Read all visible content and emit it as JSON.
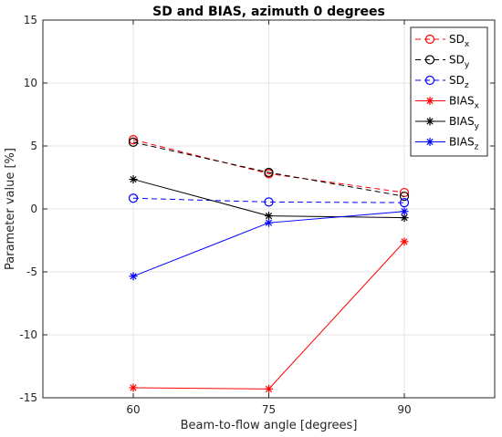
{
  "chart_data": {
    "type": "line",
    "title": "SD and BIAS, azimuth 0 degrees",
    "xlabel": "Beam-to-flow angle [degrees]",
    "ylabel": "Parameter value [%]",
    "x": [
      60,
      75,
      90
    ],
    "xlim": [
      50,
      100
    ],
    "ylim": [
      -15,
      15
    ],
    "xticks": [
      60,
      75,
      90
    ],
    "yticks": [
      -15,
      -10,
      -5,
      0,
      5,
      10,
      15
    ],
    "grid": true,
    "legend_position": "top-right",
    "series": [
      {
        "base": "SD",
        "sub": "x",
        "values": [
          5.5,
          2.8,
          1.3
        ],
        "color": "#ff0000",
        "dash": "dashed",
        "marker": "circle"
      },
      {
        "base": "SD",
        "sub": "y",
        "values": [
          5.3,
          2.9,
          1.0
        ],
        "color": "#000000",
        "dash": "dashed",
        "marker": "circle"
      },
      {
        "base": "SD",
        "sub": "z",
        "values": [
          0.85,
          0.55,
          0.5
        ],
        "color": "#0000ff",
        "dash": "dashed",
        "marker": "circle"
      },
      {
        "base": "BIAS",
        "sub": "x",
        "values": [
          -14.2,
          -14.3,
          -2.6
        ],
        "color": "#ff0000",
        "dash": "solid",
        "marker": "star"
      },
      {
        "base": "BIAS",
        "sub": "y",
        "values": [
          2.35,
          -0.55,
          -0.7
        ],
        "color": "#000000",
        "dash": "solid",
        "marker": "star"
      },
      {
        "base": "BIAS",
        "sub": "z",
        "values": [
          -5.35,
          -1.1,
          -0.2
        ],
        "color": "#0000ff",
        "dash": "solid",
        "marker": "star"
      }
    ]
  }
}
